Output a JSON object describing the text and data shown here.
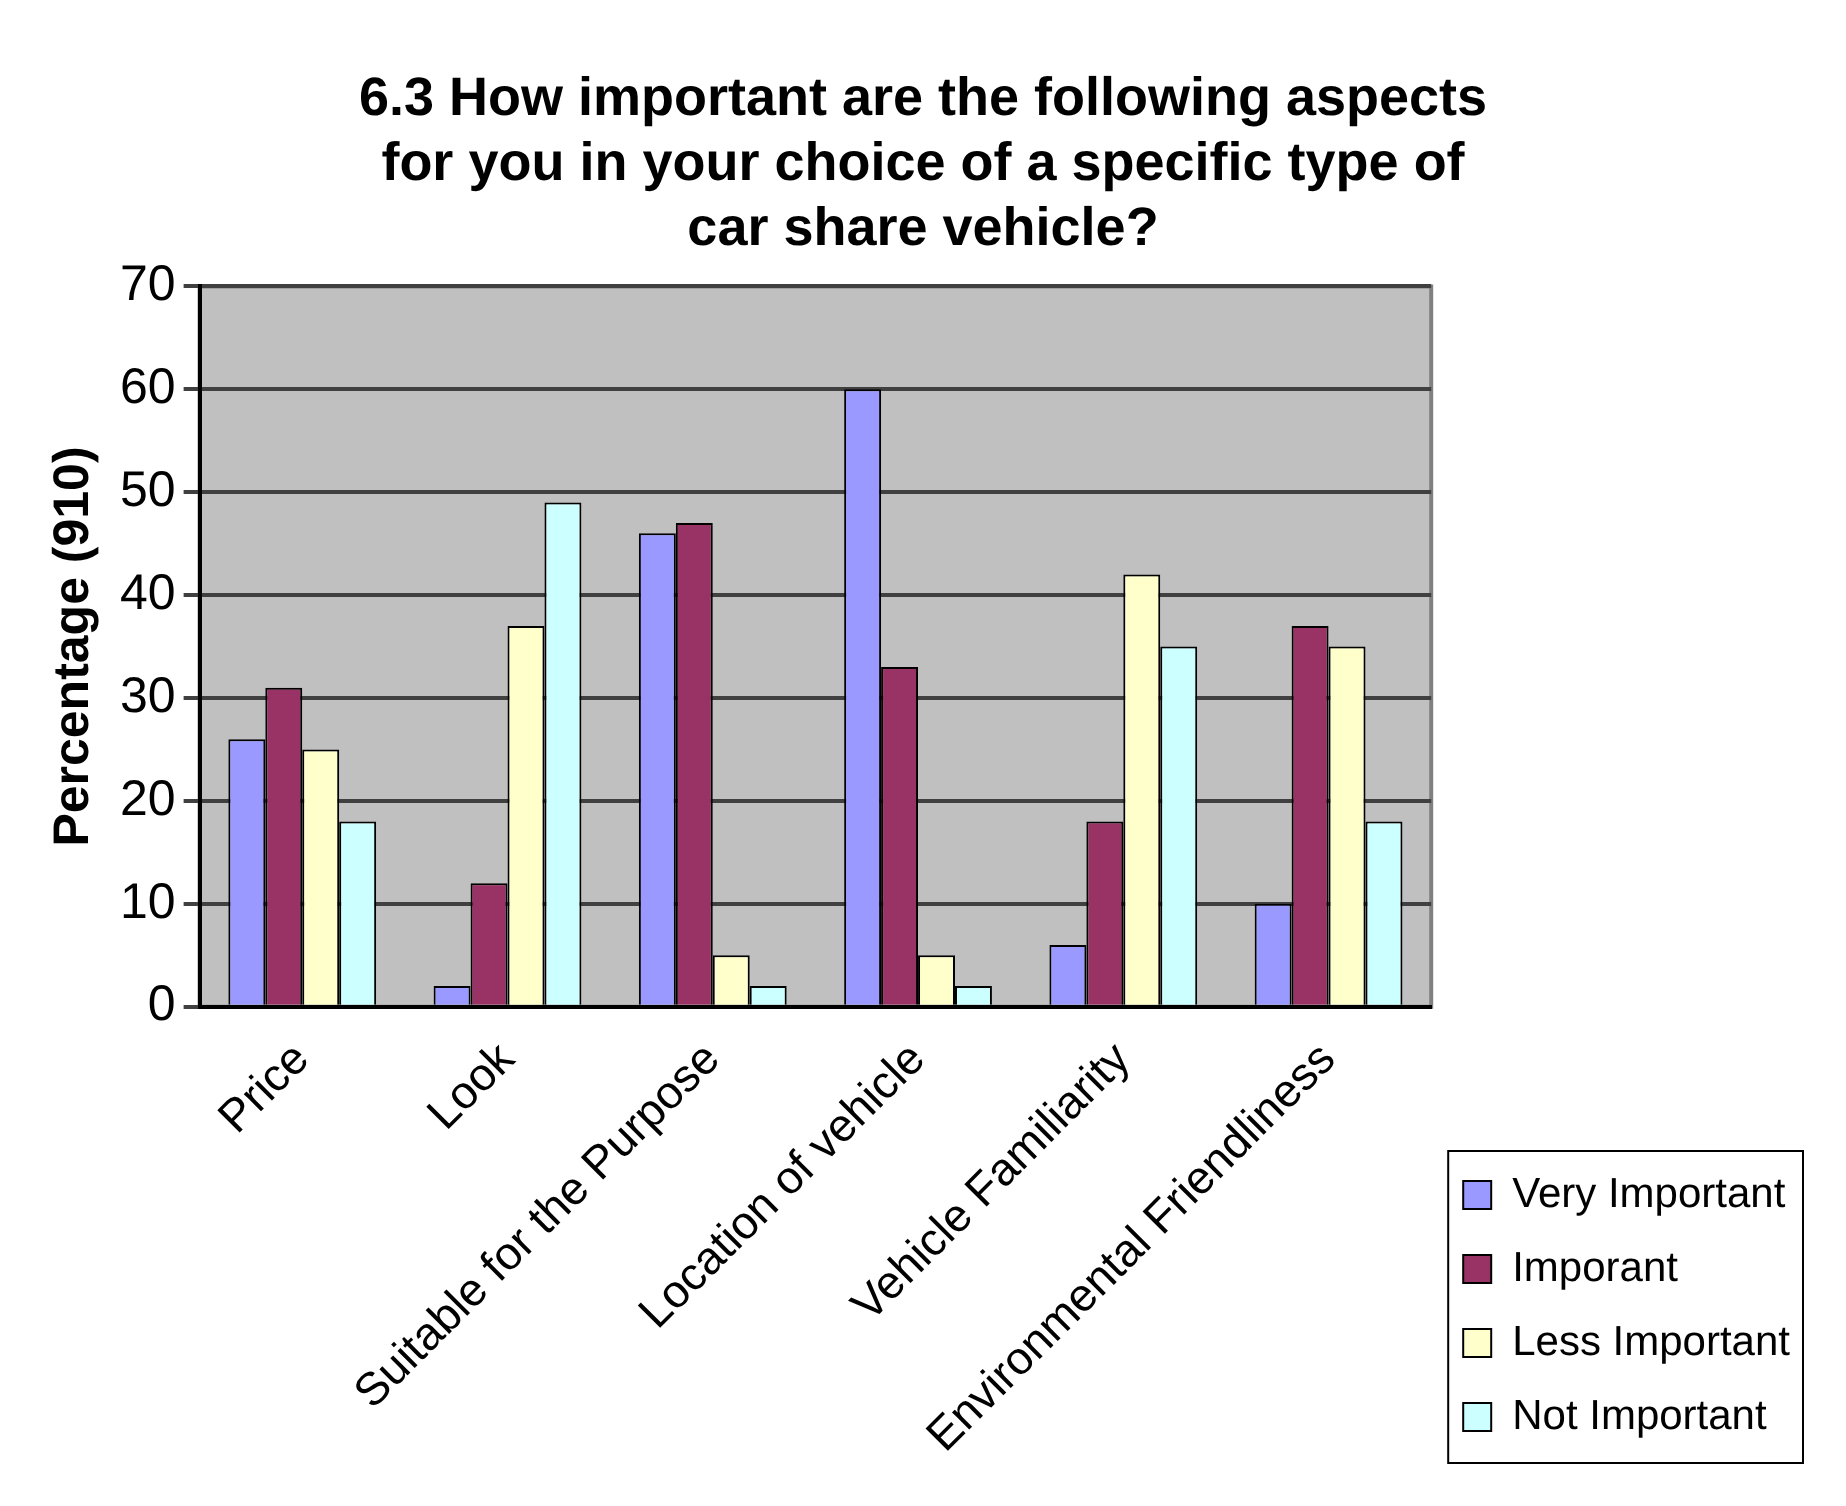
{
  "chart_data": {
    "type": "bar",
    "title": "6.3 How important are the following aspects for you in your choice of a specific type of car share vehicle?",
    "ylabel": "Percentage (910)",
    "categories": [
      "Price",
      "Look",
      "Suitable for the Purpose",
      "Location of vehicle",
      "Vehicle Familiarity",
      "Environmental Friendliness"
    ],
    "series": [
      {
        "name": "Very Important",
        "color": "#9999ff",
        "values": [
          26,
          2,
          46,
          60,
          6,
          10
        ]
      },
      {
        "name": "Imporant",
        "color": "#993366",
        "values": [
          31,
          12,
          47,
          33,
          18,
          37
        ]
      },
      {
        "name": "Less Important",
        "color": "#ffffcc",
        "values": [
          25,
          37,
          5,
          5,
          42,
          35
        ]
      },
      {
        "name": "Not Important",
        "color": "#ccffff",
        "values": [
          18,
          49,
          2,
          2,
          35,
          18
        ]
      }
    ],
    "ylim": [
      0,
      70
    ],
    "yticks": [
      0,
      10,
      20,
      30,
      40,
      50,
      60,
      70
    ],
    "grid": "y",
    "legend": "bottom right"
  }
}
